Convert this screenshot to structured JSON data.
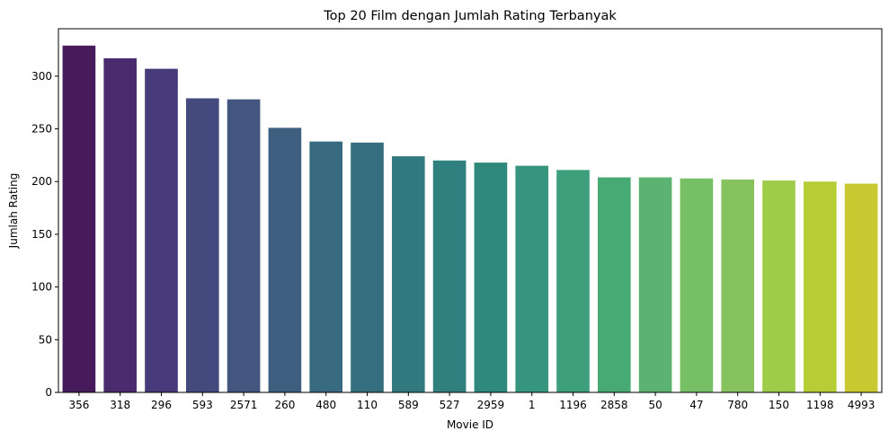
{
  "chart_data": {
    "type": "bar",
    "title": "Top 20 Film dengan Jumlah Rating Terbanyak",
    "xlabel": "Movie ID",
    "ylabel": "Jumlah Rating",
    "categories": [
      "356",
      "318",
      "296",
      "593",
      "2571",
      "260",
      "480",
      "110",
      "589",
      "527",
      "2959",
      "1",
      "1196",
      "2858",
      "50",
      "47",
      "780",
      "150",
      "1198",
      "4993"
    ],
    "values": [
      329,
      317,
      307,
      279,
      278,
      251,
      238,
      237,
      224,
      220,
      218,
      215,
      211,
      204,
      204,
      203,
      202,
      201,
      200,
      198
    ],
    "colors": [
      "#471a5c",
      "#4a2b6d",
      "#473a7b",
      "#454a7e",
      "#42567f",
      "#3e5f80",
      "#386a80",
      "#356f7f",
      "#327a7f",
      "#2f807e",
      "#2e887c",
      "#36957f",
      "#3e9f7c",
      "#47aa73",
      "#5cb371",
      "#76bf65",
      "#86c25e",
      "#9ecb48",
      "#b7cd35",
      "#c8c831"
    ],
    "ylim": [
      0,
      345
    ],
    "yticks": [
      0,
      50,
      100,
      150,
      200,
      250,
      300
    ],
    "grid": false,
    "legend": "none"
  }
}
